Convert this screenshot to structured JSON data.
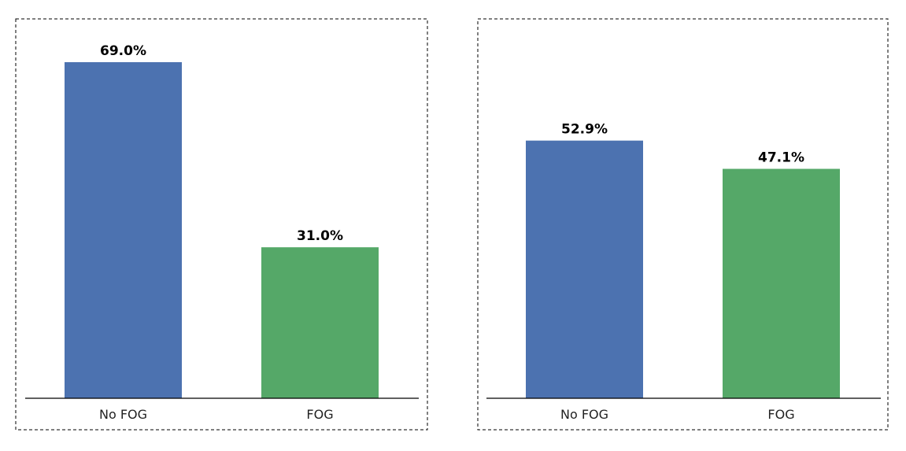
{
  "chart_data": [
    {
      "type": "bar",
      "categories": [
        "No FOG",
        "FOG"
      ],
      "values": [
        69.0,
        31.0
      ],
      "value_labels": [
        "69.0%",
        "31.0%"
      ],
      "colors": [
        "#4c72b0",
        "#55a868"
      ],
      "ylim": [
        0,
        69.0
      ],
      "grid": false,
      "frame": "dashed"
    },
    {
      "type": "bar",
      "categories": [
        "No FOG",
        "FOG"
      ],
      "values": [
        52.9,
        47.1
      ],
      "value_labels": [
        "52.9%",
        "47.1%"
      ],
      "colors": [
        "#4c72b0",
        "#55a868"
      ],
      "ylim": [
        0,
        69.0
      ],
      "grid": false,
      "frame": "dashed"
    }
  ]
}
